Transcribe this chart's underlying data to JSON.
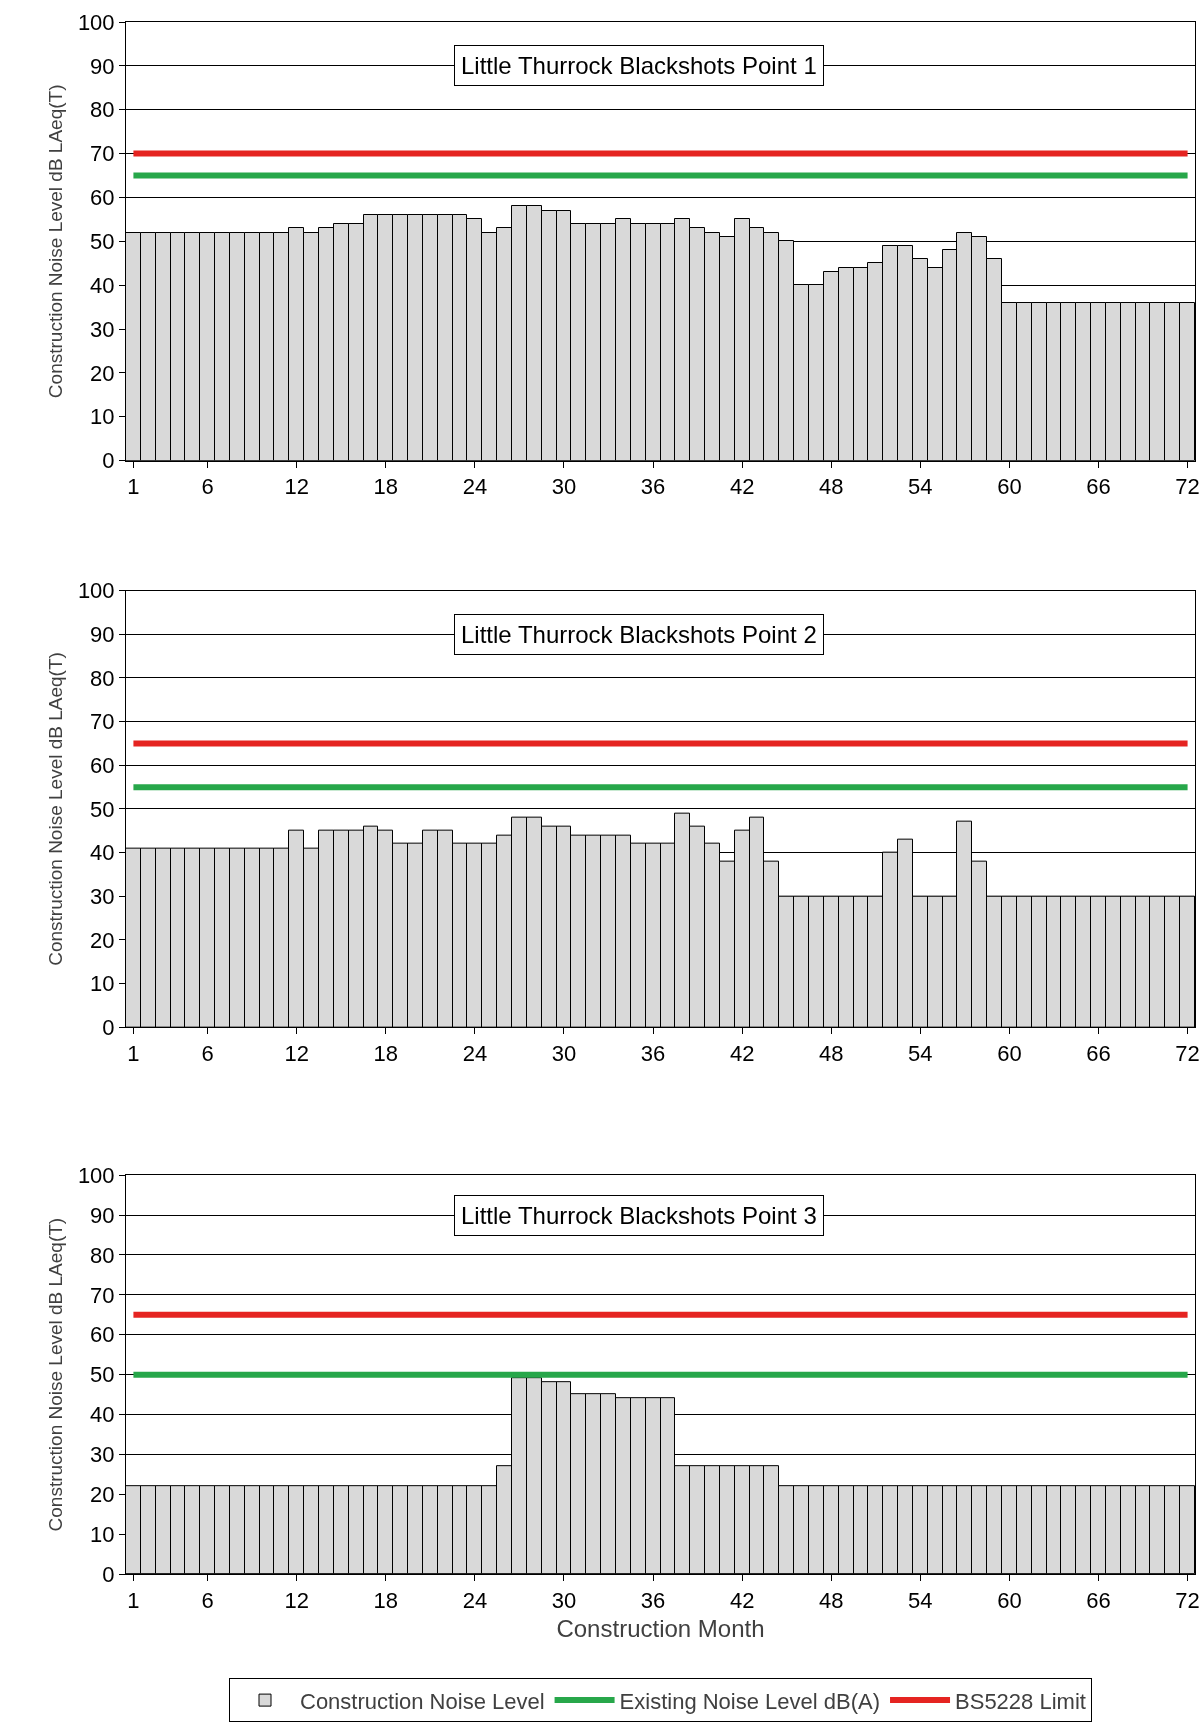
{
  "chart_data": [
    {
      "type": "bar",
      "title": "Little Thurrock Blackshots Point 1",
      "ylabel": "Construction Noise Level dB LAeq(T)",
      "categories": [
        "1",
        null,
        null,
        null,
        null,
        "6",
        null,
        null,
        null,
        null,
        null,
        "12",
        null,
        null,
        null,
        null,
        null,
        "18",
        null,
        null,
        null,
        null,
        null,
        "24",
        null,
        null,
        null,
        null,
        null,
        "30",
        null,
        null,
        null,
        null,
        null,
        "36",
        null,
        null,
        null,
        null,
        null,
        "42",
        null,
        null,
        null,
        null,
        null,
        "48",
        null,
        null,
        null,
        null,
        null,
        "54",
        null,
        null,
        null,
        null,
        null,
        "60",
        null,
        null,
        null,
        null,
        null,
        "66",
        null,
        null,
        null,
        null,
        null,
        "72"
      ],
      "ylim": [
        0,
        100
      ],
      "yticks": [
        0,
        10,
        20,
        30,
        40,
        50,
        60,
        70,
        80,
        90,
        100
      ],
      "grid": "y",
      "series": [
        {
          "color": "#d9d9d9",
          "values": [
            52,
            52,
            52,
            52,
            52,
            52,
            52,
            52,
            52,
            52,
            52,
            53,
            52,
            53,
            54,
            54,
            56,
            56,
            56,
            56,
            56,
            56,
            56,
            55,
            52,
            53,
            58,
            58,
            57,
            57,
            54,
            54,
            54,
            55,
            54,
            54,
            54,
            55,
            53,
            52,
            51,
            55,
            53,
            52,
            50,
            40,
            40,
            43,
            44,
            44,
            45,
            49,
            49,
            46,
            44,
            48,
            52,
            51,
            46,
            36,
            36,
            36,
            36,
            36,
            36,
            36,
            36,
            36,
            36,
            36,
            36,
            36
          ]
        },
        {
          "type": "line",
          "color": "#27a74a",
          "values": [
            65,
            65,
            65,
            65,
            65,
            65,
            65,
            65,
            65,
            65,
            65,
            65,
            65,
            65,
            65,
            65,
            65,
            65,
            65,
            65,
            65,
            65,
            65,
            65,
            65,
            65,
            65,
            65,
            65,
            65,
            65,
            65,
            65,
            65,
            65,
            65,
            65,
            65,
            65,
            65,
            65,
            65,
            65,
            65,
            65,
            65,
            65,
            65,
            65,
            65,
            65,
            65,
            65,
            65,
            65,
            65,
            65,
            65,
            65,
            65,
            65,
            65,
            65,
            65,
            65,
            65,
            65,
            65,
            65,
            65,
            65,
            65
          ]
        },
        {
          "type": "line",
          "color": "#e52421",
          "values": [
            70,
            70,
            70,
            70,
            70,
            70,
            70,
            70,
            70,
            70,
            70,
            70,
            70,
            70,
            70,
            70,
            70,
            70,
            70,
            70,
            70,
            70,
            70,
            70,
            70,
            70,
            70,
            70,
            70,
            70,
            70,
            70,
            70,
            70,
            70,
            70,
            70,
            70,
            70,
            70,
            70,
            70,
            70,
            70,
            70,
            70,
            70,
            70,
            70,
            70,
            70,
            70,
            70,
            70,
            70,
            70,
            70,
            70,
            70,
            70,
            70,
            70,
            70,
            70,
            70,
            70,
            70,
            70,
            70,
            70,
            70,
            70
          ]
        }
      ]
    },
    {
      "type": "bar",
      "title": "Little Thurrock Blackshots Point 2",
      "ylabel": "Construction Noise Level dB LAeq(T)",
      "categories": [
        "1",
        null,
        null,
        null,
        null,
        "6",
        null,
        null,
        null,
        null,
        null,
        "12",
        null,
        null,
        null,
        null,
        null,
        "18",
        null,
        null,
        null,
        null,
        null,
        "24",
        null,
        null,
        null,
        null,
        null,
        "30",
        null,
        null,
        null,
        null,
        null,
        "36",
        null,
        null,
        null,
        null,
        null,
        "42",
        null,
        null,
        null,
        null,
        null,
        "48",
        null,
        null,
        null,
        null,
        null,
        "54",
        null,
        null,
        null,
        null,
        null,
        "60",
        null,
        null,
        null,
        null,
        null,
        "66",
        null,
        null,
        null,
        null,
        null,
        "72"
      ],
      "ylim": [
        0,
        100
      ],
      "yticks": [
        0,
        10,
        20,
        30,
        40,
        50,
        60,
        70,
        80,
        90,
        100
      ],
      "grid": "y",
      "series": [
        {
          "color": "#d9d9d9",
          "values": [
            41,
            41,
            41,
            41,
            41,
            41,
            41,
            41,
            41,
            41,
            41,
            45,
            41,
            45,
            45,
            45,
            46,
            45,
            42,
            42,
            45,
            45,
            42,
            42,
            42,
            44,
            48,
            48,
            46,
            46,
            44,
            44,
            44,
            44,
            42,
            42,
            42,
            49,
            46,
            42,
            38,
            45,
            48,
            38,
            30,
            30,
            30,
            30,
            30,
            30,
            30,
            40,
            43,
            30,
            30,
            30,
            47,
            38,
            30,
            30,
            30,
            30,
            30,
            30,
            30,
            30,
            30,
            30,
            30,
            30,
            30,
            30
          ]
        },
        {
          "type": "line",
          "color": "#27a74a",
          "values": [
            55,
            55,
            55,
            55,
            55,
            55,
            55,
            55,
            55,
            55,
            55,
            55,
            55,
            55,
            55,
            55,
            55,
            55,
            55,
            55,
            55,
            55,
            55,
            55,
            55,
            55,
            55,
            55,
            55,
            55,
            55,
            55,
            55,
            55,
            55,
            55,
            55,
            55,
            55,
            55,
            55,
            55,
            55,
            55,
            55,
            55,
            55,
            55,
            55,
            55,
            55,
            55,
            55,
            55,
            55,
            55,
            55,
            55,
            55,
            55,
            55,
            55,
            55,
            55,
            55,
            55,
            55,
            55,
            55,
            55,
            55,
            55
          ]
        },
        {
          "type": "line",
          "color": "#e52421",
          "values": [
            65,
            65,
            65,
            65,
            65,
            65,
            65,
            65,
            65,
            65,
            65,
            65,
            65,
            65,
            65,
            65,
            65,
            65,
            65,
            65,
            65,
            65,
            65,
            65,
            65,
            65,
            65,
            65,
            65,
            65,
            65,
            65,
            65,
            65,
            65,
            65,
            65,
            65,
            65,
            65,
            65,
            65,
            65,
            65,
            65,
            65,
            65,
            65,
            65,
            65,
            65,
            65,
            65,
            65,
            65,
            65,
            65,
            65,
            65,
            65,
            65,
            65,
            65,
            65,
            65,
            65,
            65,
            65,
            65,
            65,
            65,
            65
          ]
        }
      ]
    },
    {
      "type": "bar",
      "title": "Little Thurrock Blackshots Point 3",
      "ylabel": "Construction Noise Level dB LAeq(T)",
      "xlabel": "Construction Month",
      "categories": [
        "1",
        null,
        null,
        null,
        null,
        "6",
        null,
        null,
        null,
        null,
        null,
        "12",
        null,
        null,
        null,
        null,
        null,
        "18",
        null,
        null,
        null,
        null,
        null,
        "24",
        null,
        null,
        null,
        null,
        null,
        "30",
        null,
        null,
        null,
        null,
        null,
        "36",
        null,
        null,
        null,
        null,
        null,
        "42",
        null,
        null,
        null,
        null,
        null,
        "48",
        null,
        null,
        null,
        null,
        null,
        "54",
        null,
        null,
        null,
        null,
        null,
        "60",
        null,
        null,
        null,
        null,
        null,
        "66",
        null,
        null,
        null,
        null,
        null,
        "72"
      ],
      "ylim": [
        0,
        100
      ],
      "yticks": [
        0,
        10,
        20,
        30,
        40,
        50,
        60,
        70,
        80,
        90,
        100
      ],
      "grid": "y",
      "legend": "bottom",
      "series": [
        {
          "name": "Construction Noise Level",
          "color": "#d9d9d9",
          "values": [
            22,
            22,
            22,
            22,
            22,
            22,
            22,
            22,
            22,
            22,
            22,
            22,
            22,
            22,
            22,
            22,
            22,
            22,
            22,
            22,
            22,
            22,
            22,
            22,
            22,
            27,
            49,
            49,
            48,
            48,
            45,
            45,
            45,
            44,
            44,
            44,
            44,
            27,
            27,
            27,
            27,
            27,
            27,
            27,
            22,
            22,
            22,
            22,
            22,
            22,
            22,
            22,
            22,
            22,
            22,
            22,
            22,
            22,
            22,
            22,
            22,
            22,
            22,
            22,
            22,
            22,
            22,
            22,
            22,
            22,
            22,
            22
          ]
        },
        {
          "type": "line",
          "name": "Existing Noise Level dB(A)",
          "color": "#27a74a",
          "values": [
            50,
            50,
            50,
            50,
            50,
            50,
            50,
            50,
            50,
            50,
            50,
            50,
            50,
            50,
            50,
            50,
            50,
            50,
            50,
            50,
            50,
            50,
            50,
            50,
            50,
            50,
            50,
            50,
            50,
            50,
            50,
            50,
            50,
            50,
            50,
            50,
            50,
            50,
            50,
            50,
            50,
            50,
            50,
            50,
            50,
            50,
            50,
            50,
            50,
            50,
            50,
            50,
            50,
            50,
            50,
            50,
            50,
            50,
            50,
            50,
            50,
            50,
            50,
            50,
            50,
            50,
            50,
            50,
            50,
            50,
            50,
            50
          ]
        },
        {
          "type": "line",
          "name": "BS5228 Limit",
          "color": "#e52421",
          "values": [
            65,
            65,
            65,
            65,
            65,
            65,
            65,
            65,
            65,
            65,
            65,
            65,
            65,
            65,
            65,
            65,
            65,
            65,
            65,
            65,
            65,
            65,
            65,
            65,
            65,
            65,
            65,
            65,
            65,
            65,
            65,
            65,
            65,
            65,
            65,
            65,
            65,
            65,
            65,
            65,
            65,
            65,
            65,
            65,
            65,
            65,
            65,
            65,
            65,
            65,
            65,
            65,
            65,
            65,
            65,
            65,
            65,
            65,
            65,
            65,
            65,
            65,
            65,
            65,
            65,
            65,
            65,
            65,
            65,
            65,
            65,
            65
          ]
        }
      ]
    }
  ]
}
